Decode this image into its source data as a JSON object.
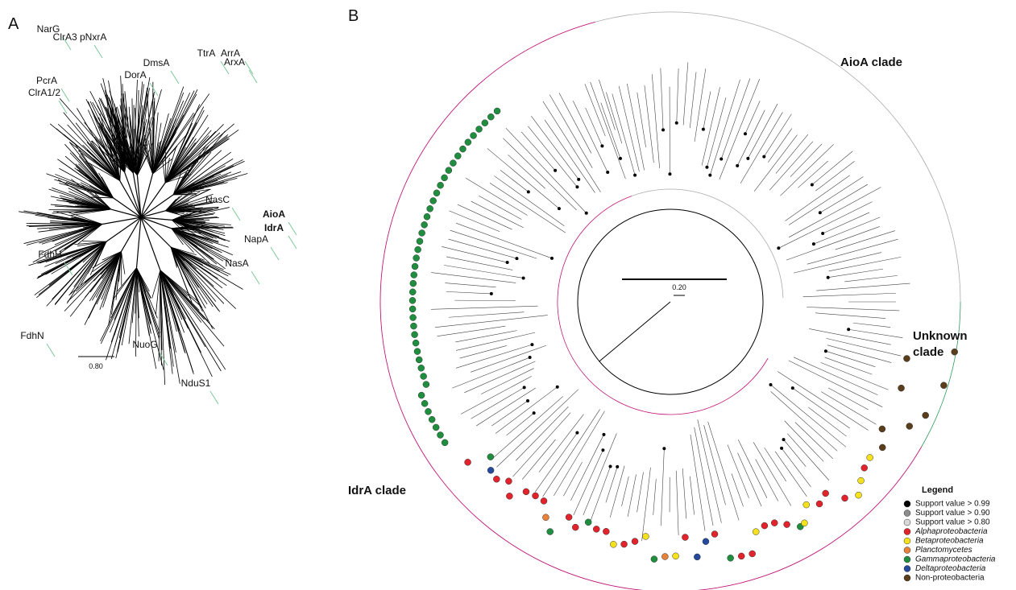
{
  "panel_a": {
    "label": "A",
    "gene_labels": [
      "NarG",
      "ClrA3 pNxrA",
      "DmsA",
      "TtrA",
      "ArrA",
      "ArxA",
      "DorA",
      "PcrA",
      "ClrA1/2",
      "NasC",
      "AioA",
      "IdrA",
      "NapA",
      "FdhH",
      "NasA",
      "FdhN",
      "NuoG",
      "NduS1"
    ],
    "scale": "0.80"
  },
  "panel_b": {
    "label": "B",
    "clades": {
      "aioa": "AioA clade",
      "unknown": [
        "Unknown",
        "clade"
      ],
      "idra": "IdrA clade"
    },
    "scale": "0.20",
    "legend": {
      "title": "Legend",
      "items": [
        {
          "name": "Support value > 0.99",
          "color": "#000000"
        },
        {
          "name": "Support value > 0.90",
          "color": "#8c8c8c"
        },
        {
          "name": "Support value > 0.80",
          "color": "#d9d9d9"
        },
        {
          "name": "Alphaproteobacteria",
          "color": "#e3232c"
        },
        {
          "name": "Betaproteobacteria",
          "color": "#f5e11c"
        },
        {
          "name": "Planctomycetes",
          "color": "#e8823a"
        },
        {
          "name": "Gammaproteobacteria",
          "color": "#1f8f3f"
        },
        {
          "name": "Deltaproteobacteria",
          "color": "#254a9c"
        },
        {
          "name": "Non-proteobacteria",
          "color": "#5a3d1a"
        }
      ]
    }
  }
}
